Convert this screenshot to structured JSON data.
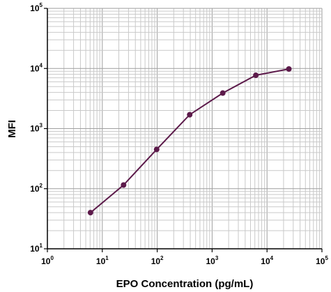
{
  "chart_data": {
    "type": "line",
    "title": "",
    "xlabel": "EPO Concentration (pg/mL)",
    "ylabel": "MFI",
    "xscale": "log",
    "yscale": "log",
    "xlim": [
      1,
      100000
    ],
    "ylim": [
      10,
      100000
    ],
    "x_ticks": [
      {
        "base": "10",
        "exp": "0"
      },
      {
        "base": "10",
        "exp": "1"
      },
      {
        "base": "10",
        "exp": "2"
      },
      {
        "base": "10",
        "exp": "3"
      },
      {
        "base": "10",
        "exp": "4"
      },
      {
        "base": "10",
        "exp": "5"
      }
    ],
    "y_ticks": [
      {
        "base": "10",
        "exp": "1"
      },
      {
        "base": "10",
        "exp": "2"
      },
      {
        "base": "10",
        "exp": "3"
      },
      {
        "base": "10",
        "exp": "4"
      },
      {
        "base": "10",
        "exp": "5"
      }
    ],
    "grid": true,
    "legend": "none",
    "series": [
      {
        "color": "#5c1a4a",
        "marker": "circle",
        "x": [
          6.1,
          24.4,
          97.7,
          390.6,
          1562.5,
          6250,
          25000
        ],
        "y": [
          40,
          115,
          450,
          1700,
          3900,
          7700,
          9800
        ]
      }
    ]
  }
}
